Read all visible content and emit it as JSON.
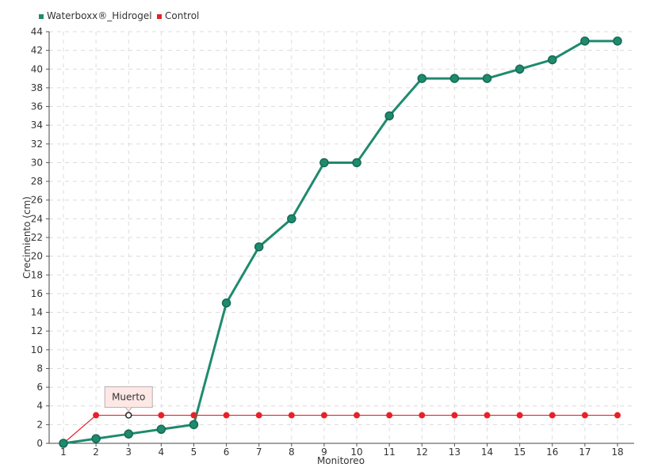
{
  "chart_data": {
    "type": "line",
    "title": "",
    "xlabel": "Monitoreo",
    "ylabel": "Crecimiento (cm)",
    "categories": [
      "1",
      "2",
      "3",
      "4",
      "5",
      "6",
      "7",
      "8",
      "9",
      "10",
      "11",
      "12",
      "13",
      "14",
      "15",
      "16",
      "17",
      "18"
    ],
    "ylim": [
      0,
      44
    ],
    "ytick_step": 2,
    "grid": true,
    "legend_position": "top-left",
    "series": [
      {
        "name": "Waterboxx®_Hidrogel",
        "color": "#1f8a6e",
        "values": [
          0,
          0.5,
          1,
          1.5,
          2,
          15,
          21,
          24,
          30,
          30,
          35,
          39,
          39,
          39,
          40,
          41,
          43,
          43
        ]
      },
      {
        "name": "Control",
        "color": "#e8202a",
        "values": [
          0,
          3,
          3,
          3,
          3,
          3,
          3,
          3,
          3,
          3,
          3,
          3,
          3,
          3,
          3,
          3,
          3,
          3
        ]
      }
    ],
    "annotations": [
      {
        "text": "Muerto",
        "series": "Control",
        "category": "3"
      }
    ]
  }
}
